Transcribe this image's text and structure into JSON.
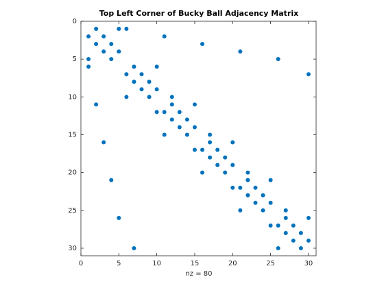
{
  "chart_data": {
    "type": "scatter",
    "title": "Top Left Corner of Bucky Ball Adjacency Matrix",
    "xlabel": "nz = 80",
    "x": [
      2,
      5,
      6,
      1,
      3,
      11,
      2,
      4,
      16,
      3,
      5,
      21,
      1,
      4,
      26,
      1,
      7,
      10,
      6,
      8,
      30,
      7,
      9,
      8,
      10,
      6,
      9,
      12,
      2,
      12,
      15,
      10,
      11,
      13,
      12,
      14,
      13,
      15,
      11,
      14,
      17,
      3,
      17,
      20,
      15,
      16,
      18,
      17,
      19,
      18,
      20,
      16,
      19,
      22,
      4,
      22,
      25,
      20,
      21,
      23,
      22,
      24,
      23,
      25,
      21,
      24,
      27,
      5,
      27,
      30,
      25,
      26,
      28,
      27,
      29,
      28,
      30,
      7,
      26,
      29
    ],
    "y": [
      1,
      1,
      1,
      2,
      2,
      2,
      3,
      3,
      3,
      4,
      4,
      4,
      5,
      5,
      5,
      6,
      6,
      6,
      7,
      7,
      7,
      8,
      8,
      9,
      9,
      10,
      10,
      10,
      11,
      11,
      11,
      12,
      12,
      12,
      13,
      13,
      14,
      14,
      15,
      15,
      15,
      16,
      16,
      16,
      17,
      17,
      17,
      18,
      18,
      19,
      19,
      20,
      20,
      20,
      21,
      21,
      21,
      22,
      22,
      22,
      23,
      23,
      24,
      24,
      25,
      25,
      25,
      26,
      26,
      26,
      27,
      27,
      27,
      28,
      28,
      29,
      29,
      30,
      30,
      30
    ],
    "color": "#0072bd",
    "xlim": [
      0,
      31
    ],
    "ylim": [
      0,
      31
    ],
    "y_reversed": true,
    "xticks": [
      0,
      5,
      10,
      15,
      20,
      25,
      30
    ],
    "yticks": [
      0,
      5,
      10,
      15,
      20,
      25,
      30
    ]
  }
}
